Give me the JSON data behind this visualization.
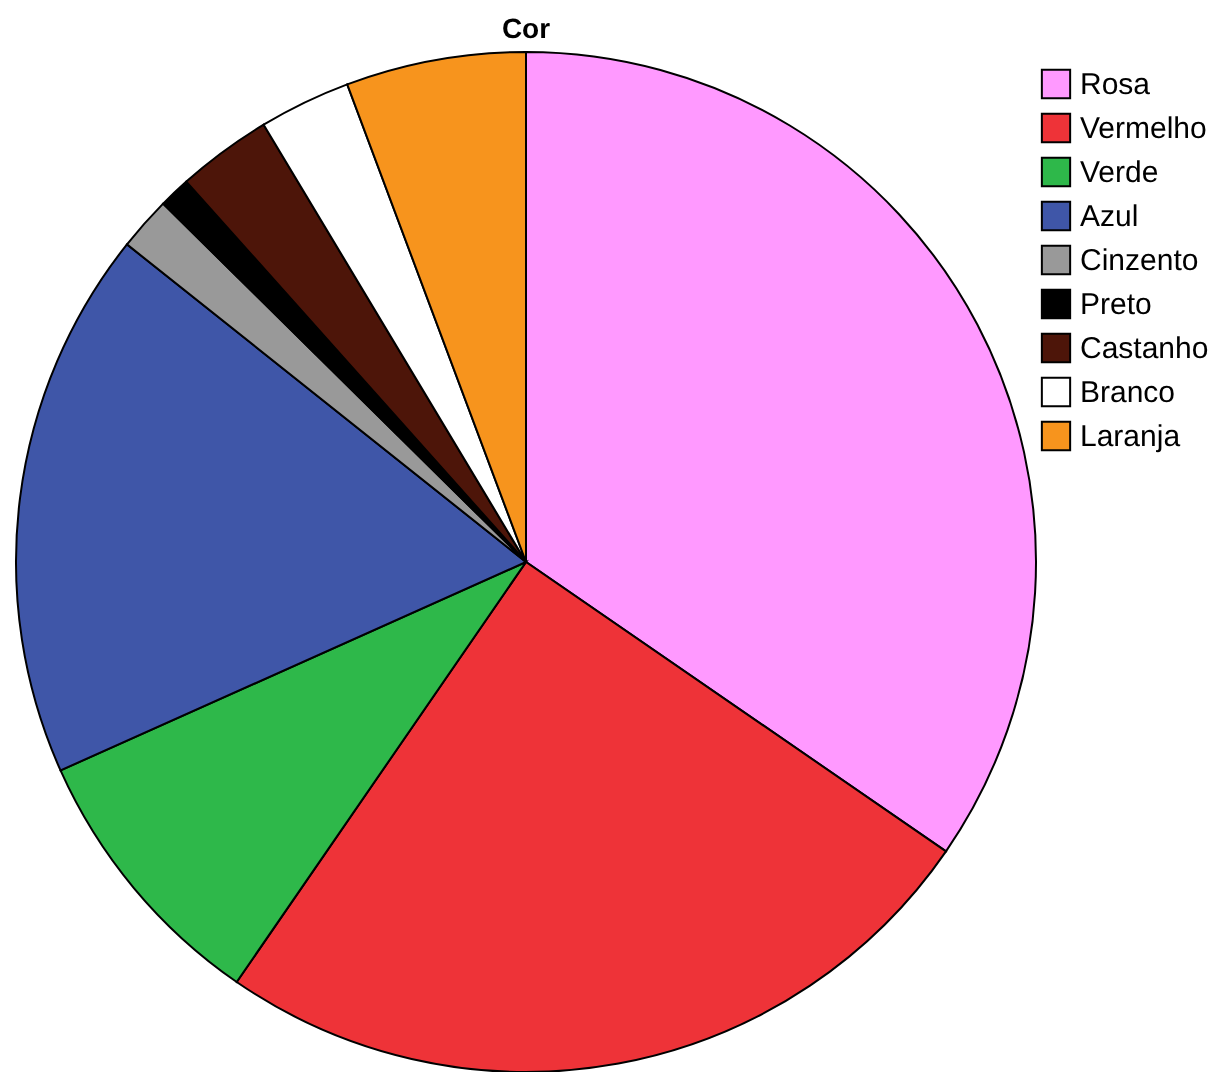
{
  "chart_data": {
    "type": "pie",
    "title": "Cor",
    "categories": [
      "Rosa",
      "Vermelho",
      "Verde",
      "Azul",
      "Cinzento",
      "Preto",
      "Castanho",
      "Branco",
      "Laranja"
    ],
    "values": [
      34.6,
      25,
      8.7,
      17.4,
      1.7,
      1,
      3,
      2.9,
      5.7
    ],
    "colors": [
      "#ff99ff",
      "#ee3338",
      "#2eb84a",
      "#3f56a8",
      "#999999",
      "#000000",
      "#4d1509",
      "#ffffff",
      "#f7941d"
    ],
    "legend": "top right"
  }
}
